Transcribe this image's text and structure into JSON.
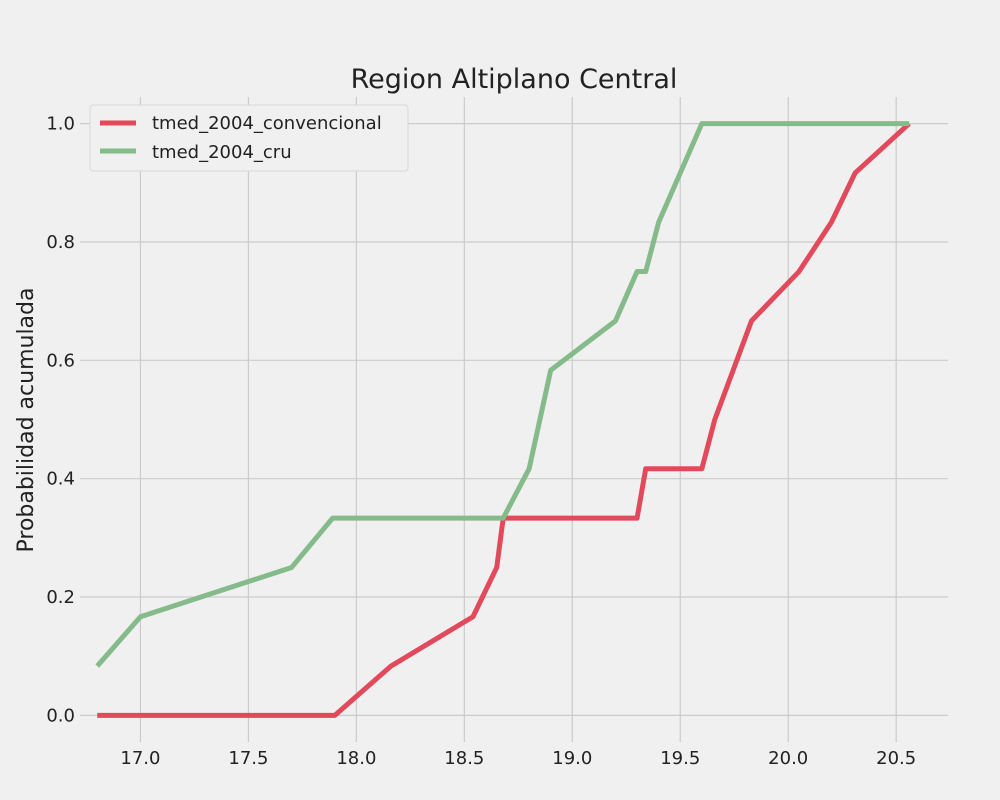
{
  "chart_data": {
    "type": "line",
    "title": "Region Altiplano Central",
    "xlabel": "",
    "ylabel": "Probabilidad acumulada",
    "xlim": [
      16.72,
      20.74
    ],
    "ylim": [
      -0.045,
      1.045
    ],
    "x_ticks": [
      17.0,
      17.5,
      18.0,
      18.5,
      19.0,
      19.5,
      20.0,
      20.5
    ],
    "x_tick_labels": [
      "17.0",
      "17.5",
      "18.0",
      "18.5",
      "19.0",
      "19.5",
      "20.0",
      "20.5"
    ],
    "y_ticks": [
      0.0,
      0.2,
      0.4,
      0.6,
      0.8,
      1.0
    ],
    "y_tick_labels": [
      "0.0",
      "0.2",
      "0.4",
      "0.6",
      "0.8",
      "1.0"
    ],
    "grid": true,
    "legend_position": "top-left",
    "series": [
      {
        "name": "tmed_2004_convencional",
        "color": "#e24a5c",
        "x": [
          16.8,
          17.9,
          18.16,
          18.54,
          18.65,
          18.68,
          19.3,
          19.34,
          19.6,
          19.66,
          19.83,
          20.05,
          20.2,
          20.31,
          20.56
        ],
        "y": [
          0.0,
          0.0,
          0.0833,
          0.1667,
          0.25,
          0.3333,
          0.3333,
          0.4167,
          0.4167,
          0.5,
          0.6667,
          0.75,
          0.8333,
          0.9167,
          1.0
        ]
      },
      {
        "name": "tmed_2004_cru",
        "color": "#85bb8a",
        "x": [
          16.8,
          17.0,
          17.7,
          17.89,
          18.68,
          18.8,
          18.9,
          19.2,
          19.3,
          19.34,
          19.4,
          19.6,
          20.56
        ],
        "y": [
          0.0833,
          0.1667,
          0.25,
          0.3333,
          0.3333,
          0.4167,
          0.5833,
          0.6667,
          0.75,
          0.75,
          0.8333,
          1.0,
          1.0
        ]
      }
    ]
  }
}
